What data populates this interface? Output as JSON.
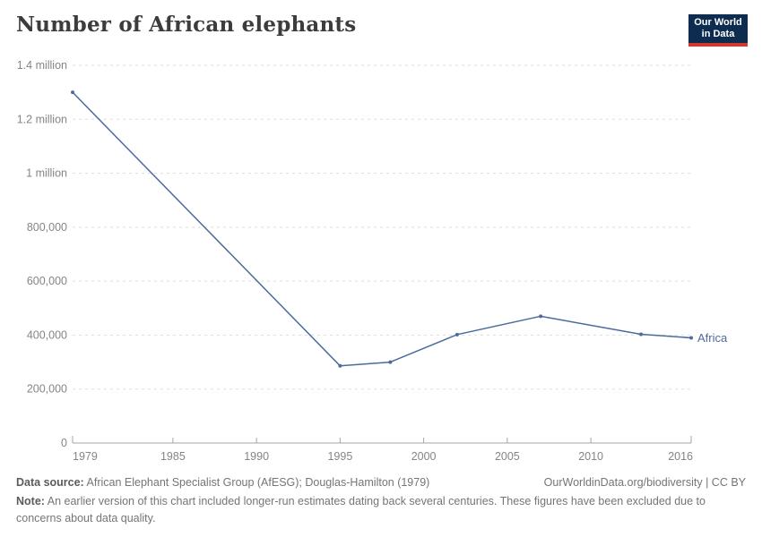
{
  "header": {
    "title": "Number of African elephants",
    "logo": {
      "line1": "Our World",
      "line2": "in Data"
    }
  },
  "chart_data": {
    "type": "line",
    "title": "Number of African elephants",
    "xlabel": "",
    "ylabel": "",
    "xlim": [
      1979,
      2016
    ],
    "ylim": [
      0,
      1400000
    ],
    "grid": "horizontal-dashed",
    "legend_position": "end-of-line-label",
    "x_ticks": [
      {
        "label": "1979",
        "value": 1979
      },
      {
        "label": "1985",
        "value": 1985
      },
      {
        "label": "1990",
        "value": 1990
      },
      {
        "label": "1995",
        "value": 1995
      },
      {
        "label": "2000",
        "value": 2000
      },
      {
        "label": "2005",
        "value": 2005
      },
      {
        "label": "2010",
        "value": 2010
      },
      {
        "label": "2016",
        "value": 2016
      }
    ],
    "y_ticks": [
      {
        "label": "0",
        "value": 0
      },
      {
        "label": "200,000",
        "value": 200000
      },
      {
        "label": "400,000",
        "value": 400000
      },
      {
        "label": "600,000",
        "value": 600000
      },
      {
        "label": "800,000",
        "value": 800000
      },
      {
        "label": "1 million",
        "value": 1000000
      },
      {
        "label": "1.2 million",
        "value": 1200000
      },
      {
        "label": "1.4 million",
        "value": 1400000
      }
    ],
    "series": [
      {
        "name": "Africa",
        "color": "#4c6a9c",
        "points": [
          [
            1979,
            1300000
          ],
          [
            1995,
            286000
          ],
          [
            1998,
            300000
          ],
          [
            2002,
            402000
          ],
          [
            2007,
            470000
          ],
          [
            2013,
            403000
          ],
          [
            2016,
            390000
          ]
        ]
      }
    ]
  },
  "footer": {
    "source_label": "Data source:",
    "source_text": " African Elephant Specialist Group (AfESG); Douglas-Hamilton (1979)",
    "license": "OurWorldinData.org/biodiversity | CC BY",
    "note_label": "Note:",
    "note_text": " An earlier version of this chart included longer-run estimates dating back several centuries. These figures have been excluded due to concerns about data quality."
  },
  "colors": {
    "accent_line": "#4c6a9c",
    "logo_navy": "#0d2c4f",
    "logo_red": "#cf3a2d",
    "tick_label_gray": "#858585",
    "gridline_gray": "#dddddd",
    "axis_gray": "#a6a6a6"
  }
}
